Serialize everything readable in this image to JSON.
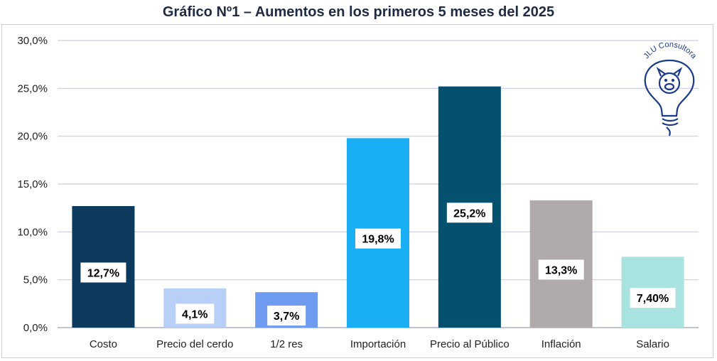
{
  "chart_data": {
    "type": "bar",
    "title": "Gráfico Nº1 – Aumentos en los primeros 5 meses del 2025",
    "xlabel": "",
    "ylabel": "",
    "ylim": [
      0,
      30
    ],
    "yticks": [
      "0,0%",
      "5,0%",
      "10,0%",
      "15,0%",
      "20,0%",
      "25,0%",
      "30,0%"
    ],
    "grid": true,
    "categories": [
      "Costo",
      "Precio del cerdo",
      "1/2 res",
      "Importación",
      "Precio al Público",
      "Inflación",
      "Salario"
    ],
    "values": [
      12.7,
      4.1,
      3.7,
      19.8,
      25.2,
      13.3,
      7.4
    ],
    "data_labels": [
      "12,7%",
      "4,1%",
      "3,7%",
      "19,8%",
      "25,2%",
      "13,3%",
      "7,40%"
    ],
    "colors": [
      "#0b3a5c",
      "#b8cff8",
      "#6e9bf0",
      "#1aaef5",
      "#03506f",
      "#b0abaa",
      "#a8e3e0"
    ],
    "gridline_color": "#c9cde6",
    "logo": {
      "text": "JLU Consultora",
      "color": "#1a3a8c",
      "icon": "pig-lightbulb-icon"
    }
  }
}
